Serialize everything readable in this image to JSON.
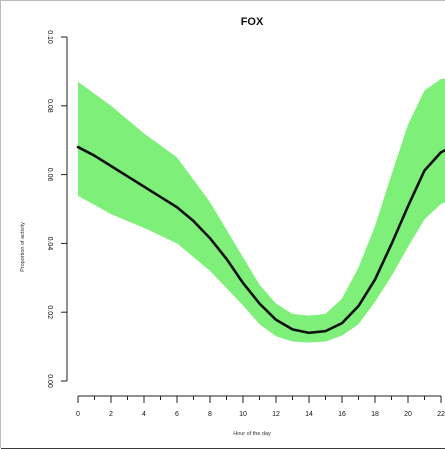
{
  "chart_data": {
    "type": "line",
    "title": "FOX",
    "xlabel": "Hour of the day",
    "ylabel": "Proportion of activity",
    "x_ticks": [
      0,
      2,
      4,
      6,
      8,
      10,
      12,
      14,
      16,
      18,
      20,
      22
    ],
    "y_ticks": [
      "0.00",
      "0.02",
      "0.04",
      "0.06",
      "0.08",
      "0.10"
    ],
    "xlim": [
      0,
      23
    ],
    "ylim": [
      0,
      0.1
    ],
    "series": [
      {
        "values": [
          {
            "x": 0,
            "y": 0.068
          },
          {
            "x": 1,
            "y": 0.0655
          },
          {
            "x": 2,
            "y": 0.0625
          },
          {
            "x": 3,
            "y": 0.0595
          },
          {
            "x": 4,
            "y": 0.0565
          },
          {
            "x": 5,
            "y": 0.0535
          },
          {
            "x": 6,
            "y": 0.0505
          },
          {
            "x": 7,
            "y": 0.0465
          },
          {
            "x": 8,
            "y": 0.0415
          },
          {
            "x": 9,
            "y": 0.0355
          },
          {
            "x": 10,
            "y": 0.0285
          },
          {
            "x": 11,
            "y": 0.0225
          },
          {
            "x": 12,
            "y": 0.0178
          },
          {
            "x": 13,
            "y": 0.015
          },
          {
            "x": 14,
            "y": 0.014
          },
          {
            "x": 15,
            "y": 0.0145
          },
          {
            "x": 16,
            "y": 0.0168
          },
          {
            "x": 17,
            "y": 0.0218
          },
          {
            "x": 18,
            "y": 0.0295
          },
          {
            "x": 19,
            "y": 0.0398
          },
          {
            "x": 20,
            "y": 0.0508
          },
          {
            "x": 21,
            "y": 0.0612
          },
          {
            "x": 22,
            "y": 0.0665
          },
          {
            "x": 23,
            "y": 0.0688
          },
          {
            "x": 23.8,
            "y": 0.068
          }
        ]
      }
    ],
    "band": {
      "upper": [
        {
          "x": 0,
          "y": 0.087
        },
        {
          "x": 2,
          "y": 0.08
        },
        {
          "x": 4,
          "y": 0.072
        },
        {
          "x": 6,
          "y": 0.065
        },
        {
          "x": 8,
          "y": 0.052
        },
        {
          "x": 10,
          "y": 0.036
        },
        {
          "x": 11,
          "y": 0.028
        },
        {
          "x": 12,
          "y": 0.0225
        },
        {
          "x": 13,
          "y": 0.0195
        },
        {
          "x": 14,
          "y": 0.019
        },
        {
          "x": 15,
          "y": 0.0195
        },
        {
          "x": 16,
          "y": 0.024
        },
        {
          "x": 17,
          "y": 0.033
        },
        {
          "x": 18,
          "y": 0.045
        },
        {
          "x": 19,
          "y": 0.06
        },
        {
          "x": 20,
          "y": 0.0745
        },
        {
          "x": 21,
          "y": 0.0845
        },
        {
          "x": 22,
          "y": 0.0878
        },
        {
          "x": 23,
          "y": 0.0882
        },
        {
          "x": 23.8,
          "y": 0.0875
        }
      ],
      "lower": [
        {
          "x": 0,
          "y": 0.0538
        },
        {
          "x": 2,
          "y": 0.0485
        },
        {
          "x": 4,
          "y": 0.0445
        },
        {
          "x": 6,
          "y": 0.04
        },
        {
          "x": 8,
          "y": 0.032
        },
        {
          "x": 10,
          "y": 0.022
        },
        {
          "x": 11,
          "y": 0.0165
        },
        {
          "x": 12,
          "y": 0.013
        },
        {
          "x": 13,
          "y": 0.0115
        },
        {
          "x": 14,
          "y": 0.0112
        },
        {
          "x": 15,
          "y": 0.0115
        },
        {
          "x": 16,
          "y": 0.0132
        },
        {
          "x": 17,
          "y": 0.0165
        },
        {
          "x": 18,
          "y": 0.023
        },
        {
          "x": 19,
          "y": 0.0305
        },
        {
          "x": 20,
          "y": 0.039
        },
        {
          "x": 21,
          "y": 0.047
        },
        {
          "x": 22,
          "y": 0.0515
        },
        {
          "x": 23,
          "y": 0.0535
        },
        {
          "x": 23.8,
          "y": 0.0532
        }
      ]
    },
    "colors": {
      "line": "#111111",
      "band": "#7ef07a",
      "axis": "#222222",
      "background": "#ffffff"
    }
  }
}
